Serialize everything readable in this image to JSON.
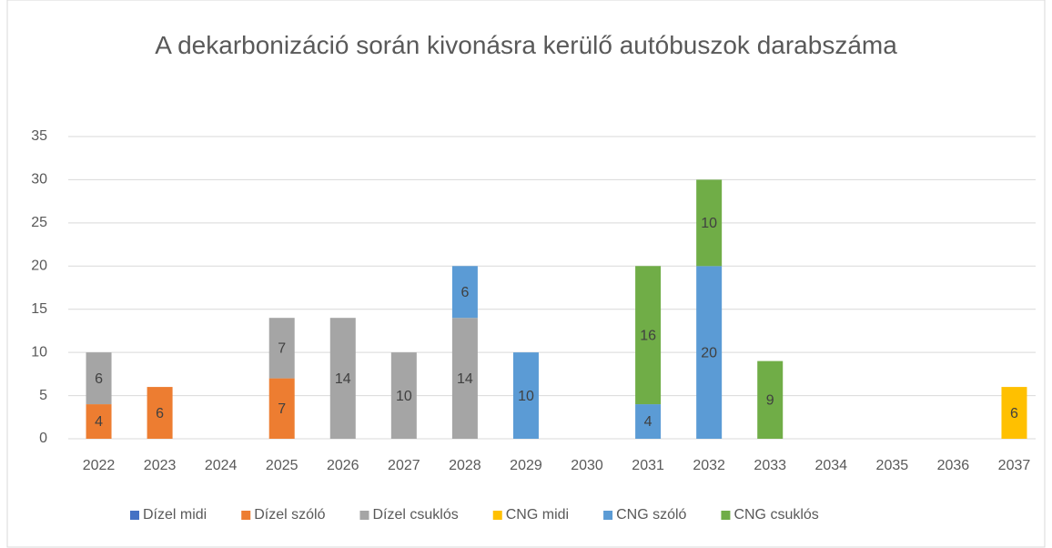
{
  "chart_data": {
    "type": "stacked_bar",
    "title": "A dekarbonizáció során kivonásra kerülő autóbuszok darabszáma",
    "categories": [
      "2022",
      "2023",
      "2024",
      "2025",
      "2026",
      "2027",
      "2028",
      "2029",
      "2030",
      "2031",
      "2032",
      "2033",
      "2034",
      "2035",
      "2036",
      "2037"
    ],
    "series": [
      {
        "name": "Dízel midi",
        "color": "#4472c4",
        "values": [
          null,
          null,
          null,
          null,
          null,
          null,
          null,
          null,
          null,
          null,
          null,
          null,
          null,
          null,
          null,
          null
        ]
      },
      {
        "name": "Dízel szóló",
        "color": "#ed7d31",
        "values": [
          4,
          6,
          null,
          7,
          null,
          null,
          null,
          null,
          null,
          null,
          null,
          null,
          null,
          null,
          null,
          null
        ]
      },
      {
        "name": "Dízel csuklós",
        "color": "#a5a5a5",
        "values": [
          6,
          null,
          null,
          7,
          14,
          10,
          14,
          null,
          null,
          null,
          null,
          null,
          null,
          null,
          null,
          null
        ]
      },
      {
        "name": "CNG midi",
        "color": "#ffc000",
        "values": [
          null,
          null,
          null,
          null,
          null,
          null,
          null,
          null,
          null,
          null,
          null,
          null,
          null,
          null,
          null,
          6
        ]
      },
      {
        "name": "CNG szóló",
        "color": "#5b9bd5",
        "values": [
          null,
          null,
          null,
          null,
          null,
          null,
          6,
          10,
          null,
          4,
          20,
          null,
          null,
          null,
          null,
          null
        ]
      },
      {
        "name": "CNG csuklós",
        "color": "#70ad47",
        "values": [
          null,
          null,
          null,
          null,
          null,
          null,
          null,
          null,
          null,
          16,
          10,
          9,
          null,
          null,
          null,
          null
        ]
      }
    ],
    "ylim": [
      0,
      35
    ],
    "yticks": [
      0,
      5,
      10,
      15,
      20,
      25,
      30,
      35
    ],
    "grid": true,
    "legend": "bottom"
  }
}
